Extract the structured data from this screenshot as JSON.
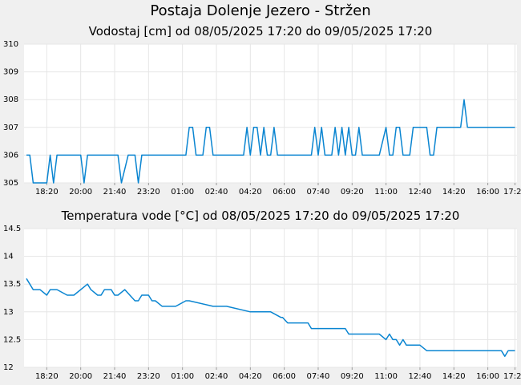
{
  "title": "Postaja Dolenje Jezero - Stržen",
  "colors": {
    "line": "#0a85d1",
    "grid": "#e6e6e6",
    "plot_bg": "#ffffff",
    "page_bg": "#f0f0f0"
  },
  "chart_data": [
    {
      "type": "line",
      "title": "Vodostaj [cm] od 08/05/2025 17:20 do 09/05/2025 17:20",
      "xlabel": "",
      "ylabel": "",
      "ylim": [
        305,
        310
      ],
      "yticks": [
        "305",
        "306",
        "307",
        "308",
        "309",
        "310"
      ],
      "xlim": [
        "17:20",
        "17:20"
      ],
      "xticks": [
        "18:20",
        "20:00",
        "21:40",
        "23:20",
        "01:00",
        "02:40",
        "04:20",
        "06:00",
        "07:40",
        "09:20",
        "11:00",
        "12:40",
        "14:20",
        "16:00",
        "17:20"
      ],
      "grid": true,
      "series": [
        {
          "x": [
            "17:20",
            "17:30",
            "17:40",
            "18:10",
            "18:20",
            "18:30",
            "18:40",
            "18:50",
            "19:00",
            "19:50",
            "20:00",
            "20:10",
            "20:20",
            "21:20",
            "21:30",
            "21:40",
            "21:50",
            "22:00",
            "22:20",
            "22:30",
            "22:40",
            "22:50",
            "23:00",
            "23:10",
            "23:30",
            "23:40",
            "23:50",
            "00:50",
            "01:00",
            "01:10",
            "01:20",
            "01:30",
            "01:40",
            "01:50",
            "02:00",
            "02:10",
            "02:20",
            "02:30",
            "02:40",
            "02:50",
            "03:00",
            "03:10",
            "03:20",
            "04:00",
            "04:10",
            "04:20",
            "04:30",
            "04:40",
            "04:50",
            "05:00",
            "05:10",
            "05:20",
            "05:30",
            "05:40",
            "05:50",
            "06:00",
            "06:10",
            "06:20",
            "06:30",
            "07:20",
            "07:30",
            "07:40",
            "07:50",
            "08:00",
            "08:10",
            "08:20",
            "08:30",
            "08:40",
            "08:50",
            "09:00",
            "09:10",
            "09:20",
            "09:30",
            "09:40",
            "09:50",
            "10:00",
            "10:10",
            "10:20",
            "10:30",
            "10:40",
            "11:00",
            "11:10",
            "11:20",
            "11:30",
            "11:40",
            "11:50",
            "12:00",
            "12:10",
            "12:20",
            "12:30",
            "12:40",
            "12:50",
            "13:00",
            "13:10",
            "13:20",
            "13:30",
            "13:40",
            "13:50",
            "14:00",
            "14:40",
            "14:50",
            "15:00",
            "15:10",
            "15:20",
            "17:20"
          ],
          "values": [
            306,
            306,
            305,
            305,
            305,
            306,
            305,
            306,
            306,
            306,
            306,
            305,
            306,
            306,
            306,
            306,
            306,
            305,
            306,
            306,
            306,
            305,
            306,
            306,
            306,
            306,
            306,
            306,
            306,
            306,
            307,
            307,
            306,
            306,
            306,
            307,
            307,
            306,
            306,
            306,
            306,
            306,
            306,
            306,
            307,
            306,
            307,
            307,
            306,
            307,
            306,
            306,
            307,
            306,
            306,
            306,
            306,
            306,
            306,
            306,
            307,
            306,
            307,
            306,
            306,
            306,
            307,
            306,
            307,
            306,
            307,
            306,
            306,
            307,
            306,
            306,
            306,
            306,
            306,
            306,
            307,
            306,
            306,
            307,
            307,
            306,
            306,
            306,
            307,
            307,
            307,
            307,
            307,
            306,
            306,
            307,
            307,
            307,
            307,
            307,
            308,
            307,
            307,
            307,
            307
          ]
        }
      ]
    },
    {
      "type": "line",
      "title": "Temperatura vode [°C] od 08/05/2025 17:20 do 09/05/2025 17:20",
      "xlabel": "",
      "ylabel": "",
      "ylim": [
        12,
        14.5
      ],
      "yticks": [
        "12",
        "12.5",
        "13",
        "13.5",
        "14",
        "14.5"
      ],
      "xlim": [
        "17:20",
        "17:20"
      ],
      "xticks": [
        "18:20",
        "20:00",
        "21:40",
        "23:20",
        "01:00",
        "02:40",
        "04:20",
        "06:00",
        "07:40",
        "09:20",
        "11:00",
        "12:40",
        "14:20",
        "16:00",
        "17:20"
      ],
      "grid": true,
      "series": [
        {
          "x": [
            "17:20",
            "17:30",
            "17:40",
            "18:00",
            "18:20",
            "18:30",
            "18:40",
            "18:50",
            "19:20",
            "19:30",
            "19:40",
            "20:20",
            "20:30",
            "20:50",
            "21:00",
            "21:10",
            "21:30",
            "21:40",
            "21:50",
            "22:10",
            "22:40",
            "22:50",
            "23:00",
            "23:20",
            "23:30",
            "23:40",
            "24:00",
            "00:10",
            "00:30",
            "00:40",
            "01:10",
            "01:20",
            "02:30",
            "02:50",
            "02:55",
            "03:10",
            "04:20",
            "04:30",
            "05:20",
            "05:50",
            "05:55",
            "06:10",
            "06:20",
            "06:30",
            "07:10",
            "07:20",
            "07:25",
            "08:40",
            "09:00",
            "09:10",
            "10:00",
            "10:10",
            "10:20",
            "10:30",
            "10:40",
            "11:00",
            "11:10",
            "11:20",
            "11:30",
            "11:40",
            "11:50",
            "12:00",
            "12:10",
            "12:20",
            "12:40",
            "13:00",
            "13:10",
            "13:20",
            "16:00",
            "16:40",
            "16:50",
            "17:00",
            "17:20"
          ],
          "values": [
            13.6,
            13.5,
            13.4,
            13.4,
            13.3,
            13.4,
            13.4,
            13.4,
            13.3,
            13.3,
            13.3,
            13.5,
            13.4,
            13.3,
            13.3,
            13.4,
            13.4,
            13.3,
            13.3,
            13.4,
            13.2,
            13.2,
            13.3,
            13.3,
            13.2,
            13.2,
            13.1,
            13.1,
            13.1,
            13.1,
            13.2,
            13.2,
            13.1,
            13.1,
            13.1,
            13.1,
            13.0,
            13.0,
            13.0,
            12.9,
            12.9,
            12.8,
            12.8,
            12.8,
            12.8,
            12.7,
            12.7,
            12.7,
            12.7,
            12.6,
            12.6,
            12.6,
            12.6,
            12.6,
            12.6,
            12.5,
            12.6,
            12.5,
            12.5,
            12.4,
            12.5,
            12.4,
            12.4,
            12.4,
            12.4,
            12.3,
            12.3,
            12.3,
            12.3,
            12.3,
            12.2,
            12.3,
            12.3
          ]
        }
      ]
    }
  ]
}
